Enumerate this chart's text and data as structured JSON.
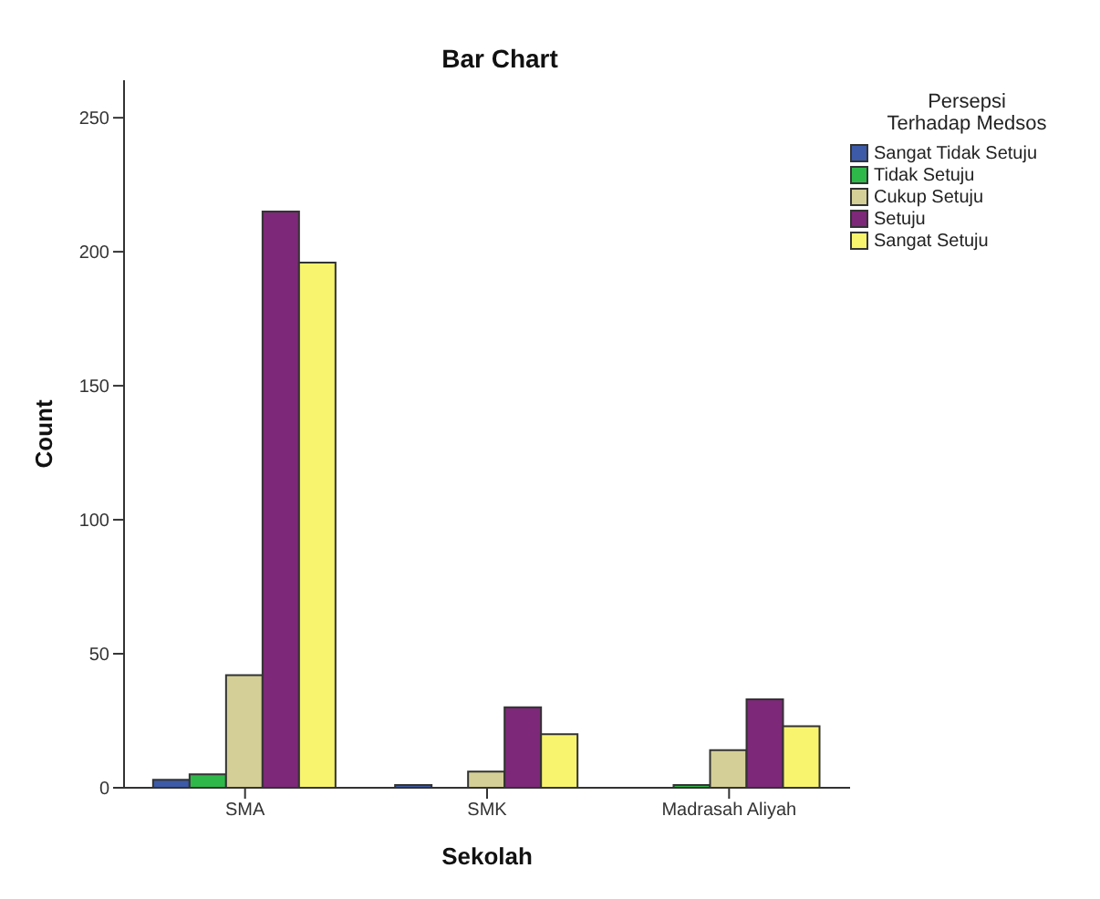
{
  "chart_data": {
    "type": "bar",
    "title": "Bar Chart",
    "xlabel": "Sekolah",
    "ylabel": "Count",
    "legend_title": "Persepsi\nTerhadap Medsos",
    "categories": [
      "SMA",
      "SMK",
      "Madrasah Aliyah"
    ],
    "series": [
      {
        "name": "Sangat Tidak Setuju",
        "color": "#3c5aa8",
        "values": [
          3,
          1,
          0
        ]
      },
      {
        "name": "Tidak Setuju",
        "color": "#2eb84a",
        "values": [
          5,
          0,
          1
        ]
      },
      {
        "name": "Cukup Setuju",
        "color": "#d4cf96",
        "values": [
          42,
          6,
          14
        ]
      },
      {
        "name": "Setuju",
        "color": "#7d2878",
        "values": [
          215,
          30,
          33
        ]
      },
      {
        "name": "Sangat Setuju",
        "color": "#f8f46e",
        "values": [
          196,
          20,
          23
        ]
      }
    ],
    "ylim": [
      0,
      264
    ],
    "yticks": [
      0,
      50,
      100,
      150,
      200,
      250
    ],
    "grid": false,
    "legend": "top right"
  }
}
